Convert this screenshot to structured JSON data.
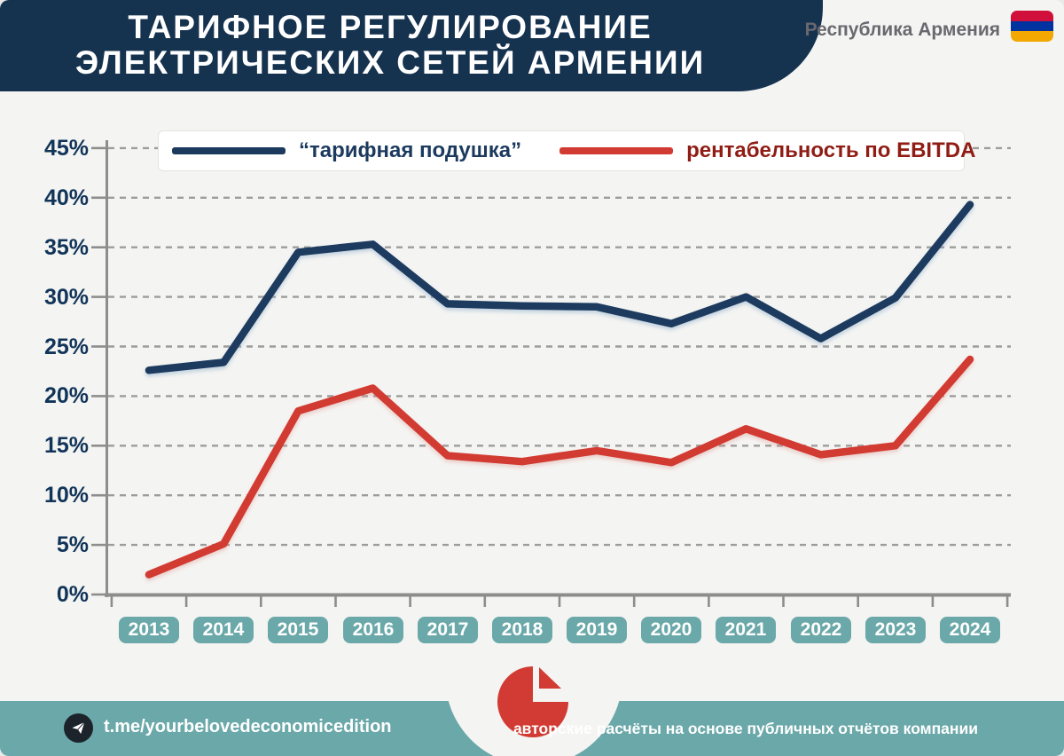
{
  "header": {
    "title_line1": "ТАРИФНОЕ РЕГУЛИРОВАНИЕ",
    "title_line2": "ЭЛЕКТРИЧЕСКИХ СЕТЕЙ АРМЕНИИ"
  },
  "country": {
    "label": "Республика Армения",
    "flag_colors": [
      "#D0103A",
      "#0033A0",
      "#F2A800"
    ]
  },
  "legend": {
    "item1": "“тарифная подушка”",
    "item2": "рентабельность по EBITDA"
  },
  "chart_data": {
    "type": "line",
    "title": "Тарифное регулирование электрических сетей Армении",
    "categories": [
      "2013",
      "2014",
      "2015",
      "2016",
      "2017",
      "2018",
      "2019",
      "2020",
      "2021",
      "2022",
      "2023",
      "2024"
    ],
    "series": [
      {
        "name": "“тарифная подушка”",
        "color": "#1b3a5e",
        "values": [
          22.6,
          23.4,
          34.5,
          35.3,
          29.3,
          29.1,
          29.0,
          27.3,
          30.0,
          25.8,
          29.9,
          39.3
        ]
      },
      {
        "name": "рентабельность по EBITDA",
        "color": "#d23b33",
        "values": [
          2.0,
          5.1,
          18.5,
          20.8,
          14.0,
          13.4,
          14.5,
          13.3,
          16.7,
          14.1,
          15.0,
          23.7
        ]
      }
    ],
    "ylim": [
      0,
      45
    ],
    "ytick_step": 5,
    "ytick_labels": [
      "0%",
      "5%",
      "10%",
      "15%",
      "20%",
      "25%",
      "30%",
      "35%",
      "40%",
      "45%"
    ],
    "grid": "horizontal-dashed",
    "legend_position": "top",
    "xlabel": "",
    "ylabel": ""
  },
  "footer": {
    "telegram": "t.me/yourbelovedeconomicedition",
    "source": "авторские расчёты на основе публичных отчётов компании"
  },
  "colors": {
    "header_bg": "#15324f",
    "page_bg": "#f4f4f2",
    "teal": "#6ba8a9",
    "navy_line": "#1b3a5e",
    "red_line": "#d23b33",
    "maroon_text": "#8f1d15",
    "axis_gray": "#8d8d8d",
    "grid_gray": "#9c9c9c",
    "gray_text": "#68686f"
  }
}
